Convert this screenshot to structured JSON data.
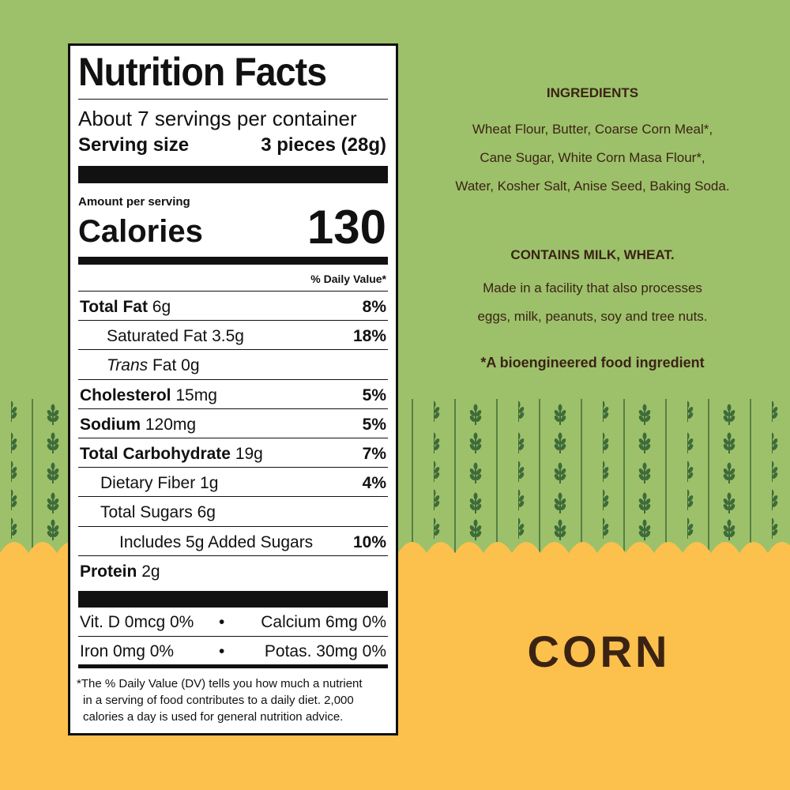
{
  "nutrition": {
    "title": "Nutrition Facts",
    "servings": "About 7 servings per container",
    "serving_size_label": "Serving size",
    "serving_size": "3 pieces (28g)",
    "amount_per_serving": "Amount per serving",
    "calories_label": "Calories",
    "calories": 130,
    "daily_value_header": "% Daily Value*",
    "rows": [
      {
        "name": "Total Fat",
        "amount": "6g",
        "dv": "8%"
      },
      {
        "name": "Saturated Fat",
        "amount": "3.5g",
        "dv": "18%"
      },
      {
        "prefix": "Trans",
        "name": "Fat",
        "amount": "0g"
      },
      {
        "name": "Cholesterol",
        "amount": "15mg",
        "dv": "5%"
      },
      {
        "name": "Sodium",
        "amount": "120mg",
        "dv": "5%"
      },
      {
        "name": "Total Carbohydrate",
        "amount": "19g",
        "dv": "7%"
      },
      {
        "name": "Dietary Fiber",
        "amount": "1g",
        "dv": "4%"
      },
      {
        "name": "Total Sugars",
        "amount": "6g"
      },
      {
        "name": "Includes 5g Added Sugars",
        "dv": "10%"
      },
      {
        "name": "Protein",
        "amount": "2g"
      }
    ],
    "vitamins": [
      [
        "Vit. D 0mcg 0%",
        "Calcium 6mg 0%"
      ],
      [
        "Iron 0mg 0%",
        "Potas. 30mg 0%"
      ]
    ],
    "footnote": [
      "*The % Daily Value (DV) tells you how much a nutrient",
      "in a serving of food contributes to a daily diet. 2,000",
      "calories a day is used for general nutrition advice."
    ]
  },
  "ingredients": {
    "heading": "INGREDIENTS",
    "lines": [
      "Wheat Flour, Butter, Coarse Corn Meal*,",
      "Cane Sugar, White Corn Masa Flour*,",
      "Water, Kosher Salt, Anise Seed, Baking Soda."
    ]
  },
  "allergens": {
    "contains": "CONTAINS MILK, WHEAT.",
    "facility": [
      "Made in a facility that also processes",
      "eggs, milk, peanuts, soy and tree nuts."
    ],
    "note": "*A bioengineered food ingredient"
  },
  "flavor": "CORN"
}
